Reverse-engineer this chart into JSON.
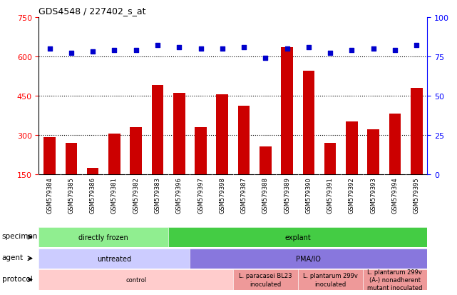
{
  "title": "GDS4548 / 227402_s_at",
  "samples": [
    "GSM579384",
    "GSM579385",
    "GSM579386",
    "GSM579381",
    "GSM579382",
    "GSM579383",
    "GSM579396",
    "GSM579397",
    "GSM579398",
    "GSM579387",
    "GSM579388",
    "GSM579389",
    "GSM579390",
    "GSM579391",
    "GSM579392",
    "GSM579393",
    "GSM579394",
    "GSM579395"
  ],
  "counts": [
    290,
    270,
    175,
    305,
    330,
    490,
    460,
    330,
    455,
    410,
    255,
    635,
    545,
    270,
    350,
    320,
    380,
    480
  ],
  "percentiles": [
    80,
    77,
    78,
    79,
    79,
    82,
    81,
    80,
    80,
    81,
    74,
    80,
    81,
    77,
    79,
    80,
    79,
    82
  ],
  "bar_color": "#cc0000",
  "dot_color": "#0000cc",
  "left_yticks": [
    150,
    300,
    450,
    600,
    750
  ],
  "right_yticks": [
    0,
    25,
    50,
    75,
    100
  ],
  "ylim_left": [
    150,
    750
  ],
  "ylim_right": [
    0,
    100
  ],
  "grid_values": [
    300,
    450,
    600
  ],
  "specimen_row": {
    "label": "specimen",
    "groups": [
      {
        "text": "directly frozen",
        "start": 0,
        "end": 6,
        "color": "#90ee90"
      },
      {
        "text": "explant",
        "start": 6,
        "end": 18,
        "color": "#44cc44"
      }
    ]
  },
  "agent_row": {
    "label": "agent",
    "groups": [
      {
        "text": "untreated",
        "start": 0,
        "end": 7,
        "color": "#ccccff"
      },
      {
        "text": "PMA/IO",
        "start": 7,
        "end": 18,
        "color": "#8877dd"
      }
    ]
  },
  "protocol_row": {
    "label": "protocol",
    "groups": [
      {
        "text": "control",
        "start": 0,
        "end": 9,
        "color": "#ffcccc"
      },
      {
        "text": "L. paracasei BL23\ninoculated",
        "start": 9,
        "end": 12,
        "color": "#ee9999"
      },
      {
        "text": "L. plantarum 299v\ninoculated",
        "start": 12,
        "end": 15,
        "color": "#ee9999"
      },
      {
        "text": "L. plantarum 299v\n(A-) nonadherent\nmutant inoculated",
        "start": 15,
        "end": 18,
        "color": "#ee9999"
      }
    ]
  },
  "fig_width": 6.41,
  "fig_height": 4.14,
  "dpi": 100
}
